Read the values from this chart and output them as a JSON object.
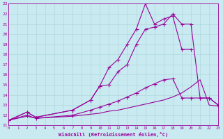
{
  "xlabel": "Windchill (Refroidissement éolien,°C)",
  "background_color": "#c8eaf0",
  "grid_color": "#a8d4d8",
  "line_color": "#990099",
  "xlim": [
    0,
    23
  ],
  "ylim": [
    11,
    23
  ],
  "xticks": [
    0,
    1,
    2,
    3,
    4,
    5,
    6,
    7,
    8,
    9,
    10,
    11,
    12,
    13,
    14,
    15,
    16,
    17,
    18,
    19,
    20,
    21,
    22,
    23
  ],
  "yticks": [
    11,
    12,
    13,
    14,
    15,
    16,
    17,
    18,
    19,
    20,
    21,
    22,
    23
  ],
  "line1_x": [
    0,
    2,
    3,
    7,
    9,
    10,
    11,
    12,
    13,
    14,
    15,
    16,
    17,
    18,
    19,
    20
  ],
  "line1_y": [
    11.5,
    12.3,
    11.8,
    12.5,
    13.5,
    14.9,
    16.7,
    17.5,
    19.0,
    20.5,
    23.0,
    21.0,
    21.5,
    21.8,
    18.5,
    18.5
  ],
  "line2_x": [
    0,
    2,
    3,
    7,
    9,
    10,
    11,
    12,
    13,
    14,
    15,
    16,
    17,
    18,
    19,
    20,
    21,
    22,
    23
  ],
  "line2_y": [
    11.5,
    12.3,
    11.8,
    12.5,
    13.5,
    14.9,
    15.0,
    16.3,
    17.0,
    19.0,
    20.5,
    20.7,
    21.0,
    22.0,
    21.0,
    21.0,
    13.7,
    13.7,
    13.0
  ],
  "line3_x": [
    0,
    2,
    3,
    7,
    9,
    10,
    11,
    12,
    13,
    14,
    15,
    16,
    17,
    18,
    19,
    20,
    21,
    22,
    23
  ],
  "line3_y": [
    11.5,
    12.0,
    11.7,
    12.0,
    12.5,
    12.8,
    13.1,
    13.4,
    13.8,
    14.2,
    14.7,
    15.1,
    15.5,
    15.6,
    13.7,
    13.7,
    13.7,
    13.7,
    13.0
  ],
  "line4_x": [
    0,
    2,
    3,
    7,
    9,
    10,
    11,
    12,
    13,
    14,
    15,
    16,
    17,
    18,
    19,
    20,
    21,
    22,
    23
  ],
  "line4_y": [
    11.5,
    11.9,
    11.7,
    11.9,
    12.1,
    12.2,
    12.4,
    12.5,
    12.7,
    12.9,
    13.1,
    13.3,
    13.5,
    13.8,
    14.2,
    14.8,
    15.5,
    13.0,
    12.9
  ]
}
